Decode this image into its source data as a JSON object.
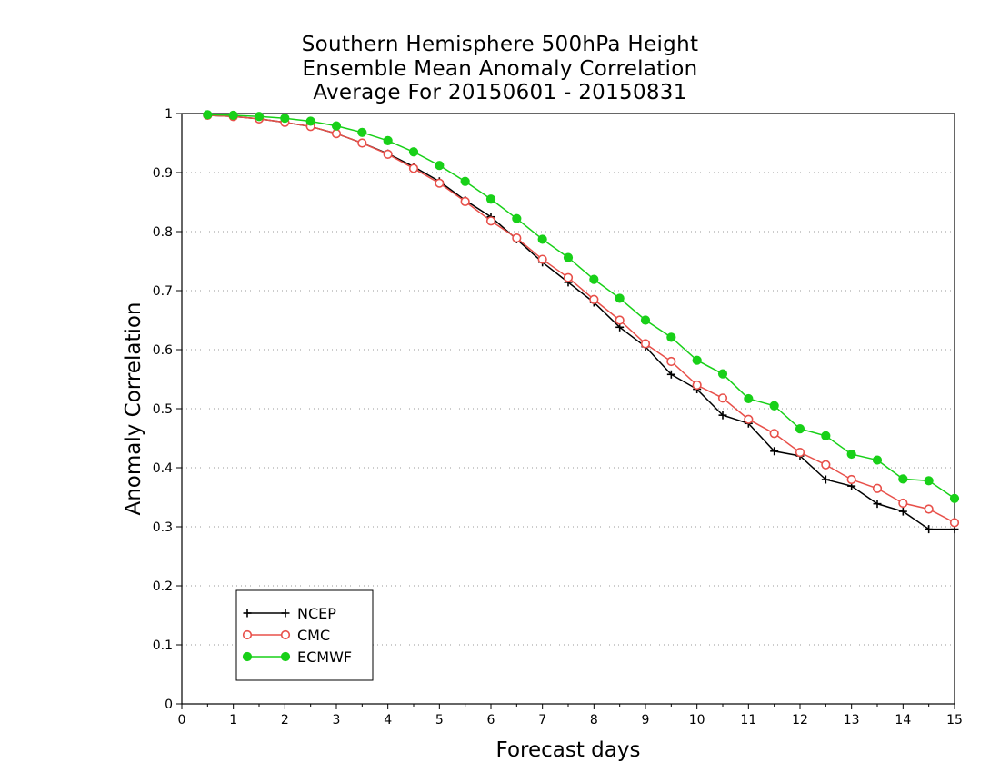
{
  "chart_data": {
    "type": "line",
    "title": [
      "Southern Hemisphere 500hPa Height",
      "Ensemble Mean Anomaly Correlation",
      "Average For 20150601 - 20150831"
    ],
    "xlabel": "Forecast days",
    "ylabel": "Anomaly Correlation",
    "xlim": [
      0,
      15
    ],
    "ylim": [
      0,
      1
    ],
    "xticks": [
      "0",
      "1",
      "2",
      "3",
      "4",
      "5",
      "6",
      "7",
      "8",
      "9",
      "10",
      "11",
      "12",
      "13",
      "14",
      "15"
    ],
    "yticks": [
      "0",
      "0.1",
      "0.2",
      "0.3",
      "0.4",
      "0.5",
      "0.6",
      "0.7",
      "0.8",
      "0.9",
      "1"
    ],
    "grid": "dotted horizontal",
    "legend_position": "bottom-left",
    "x": [
      0.5,
      1,
      1.5,
      2,
      2.5,
      3,
      3.5,
      4,
      4.5,
      5,
      5.5,
      6,
      6.5,
      7,
      7.5,
      8,
      8.5,
      9,
      9.5,
      10,
      10.5,
      11,
      11.5,
      12,
      12.5,
      13,
      13.5,
      14,
      14.5,
      15
    ],
    "series": [
      {
        "name": "NCEP",
        "color": "#000000",
        "marker": "plus",
        "values": [
          0.997,
          0.995,
          0.991,
          0.985,
          0.978,
          0.966,
          0.95,
          0.932,
          0.91,
          0.885,
          0.853,
          0.825,
          0.787,
          0.748,
          0.714,
          0.68,
          0.638,
          0.605,
          0.558,
          0.533,
          0.489,
          0.475,
          0.428,
          0.42,
          0.38,
          0.369,
          0.339,
          0.326,
          0.296,
          0.296
        ]
      },
      {
        "name": "CMC",
        "color": "#e8504a",
        "marker": "open-circle",
        "values": [
          0.997,
          0.995,
          0.991,
          0.985,
          0.978,
          0.966,
          0.95,
          0.931,
          0.907,
          0.882,
          0.851,
          0.818,
          0.789,
          0.753,
          0.722,
          0.685,
          0.65,
          0.61,
          0.58,
          0.54,
          0.518,
          0.482,
          0.458,
          0.426,
          0.405,
          0.38,
          0.365,
          0.34,
          0.33,
          0.307
        ]
      },
      {
        "name": "ECMWF",
        "color": "#18d018",
        "marker": "filled-circle",
        "values": [
          0.998,
          0.997,
          0.995,
          0.992,
          0.987,
          0.979,
          0.968,
          0.954,
          0.935,
          0.912,
          0.885,
          0.855,
          0.822,
          0.787,
          0.756,
          0.719,
          0.687,
          0.65,
          0.621,
          0.582,
          0.559,
          0.517,
          0.505,
          0.466,
          0.454,
          0.423,
          0.413,
          0.381,
          0.378,
          0.348
        ]
      }
    ]
  }
}
